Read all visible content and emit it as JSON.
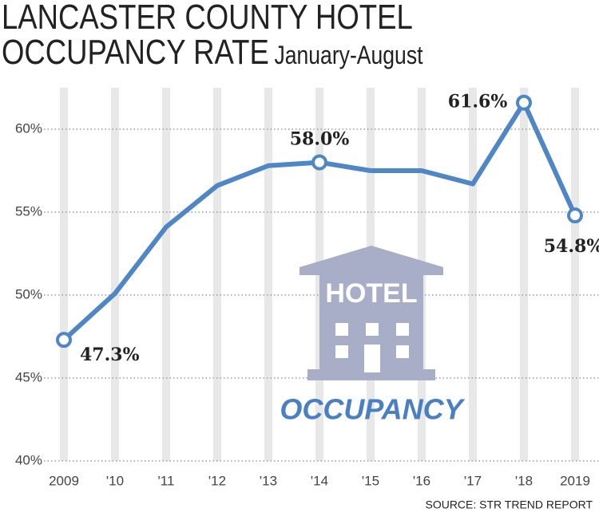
{
  "chart_data": {
    "type": "line",
    "title": "LANCASTER COUNTY HOTEL OCCUPANCY RATE",
    "subtitle": "January-August",
    "categories": [
      "2009",
      "'10",
      "'11",
      "'12",
      "'13",
      "'14",
      "'15",
      "'16",
      "'17",
      "'18",
      "2019"
    ],
    "series": [
      {
        "name": "Occupancy rate",
        "color": "#4f86c6",
        "values": [
          47.3,
          50.1,
          54.1,
          56.6,
          57.8,
          58.0,
          57.5,
          57.5,
          56.7,
          61.6,
          54.8
        ],
        "value_labels": [
          "47.3%",
          null,
          null,
          null,
          null,
          "58.0%",
          null,
          null,
          null,
          "61.6%",
          "54.8%"
        ]
      }
    ],
    "ylim": [
      40,
      62.5
    ],
    "yticks": [
      {
        "value": 40,
        "label": "40%"
      },
      {
        "value": 45,
        "label": "45%"
      },
      {
        "value": 50,
        "label": "50%"
      },
      {
        "value": 55,
        "label": "55%"
      },
      {
        "value": 60,
        "label": "60%"
      }
    ],
    "grid": true,
    "icon_sign": "HOTEL",
    "icon_caption": "OCCUPANCY",
    "source": "SOURCE:  STR TREND REPORT"
  }
}
